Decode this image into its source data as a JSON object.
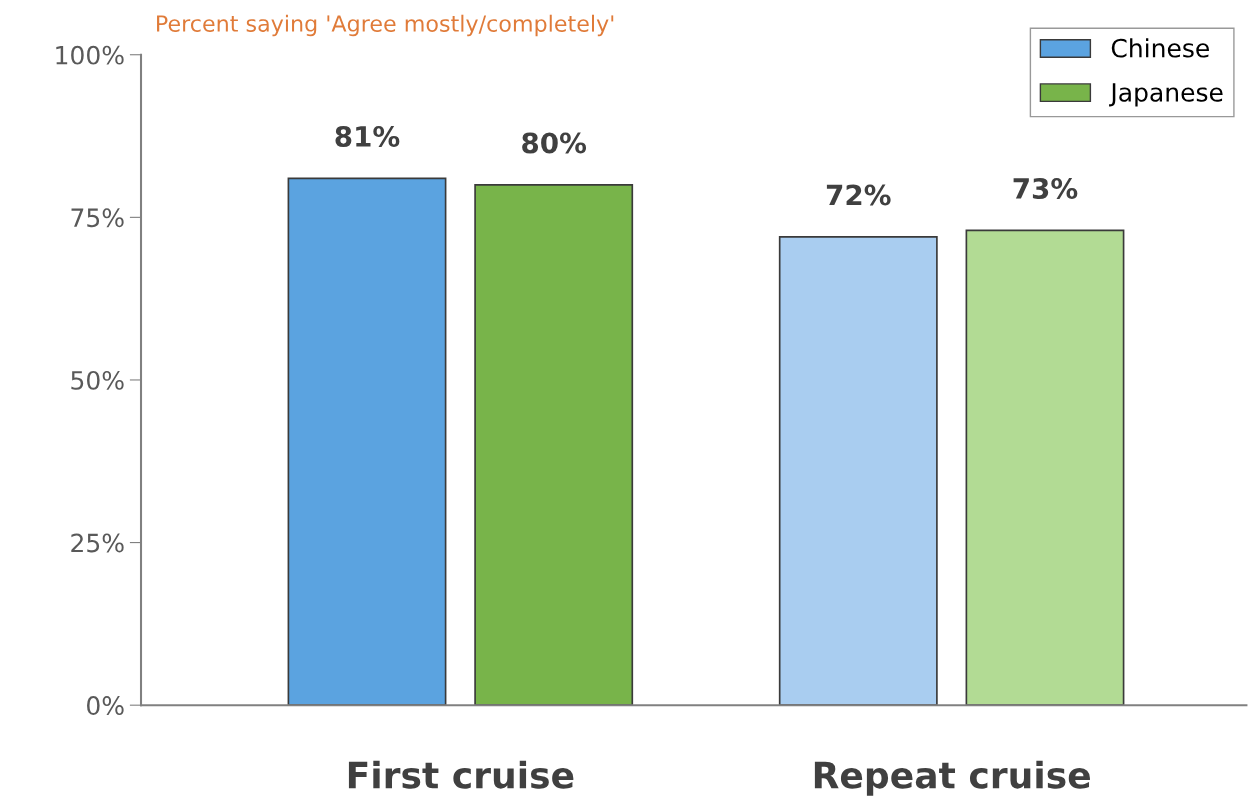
{
  "chart_data": {
    "type": "bar",
    "title": "Percent saying 'Agree mostly/completely'",
    "categories": [
      "First cruise",
      "Repeat cruise"
    ],
    "series": [
      {
        "name": "Chinese",
        "colors": [
          "#5ba3e0",
          "#a9cdf0"
        ],
        "values": [
          81,
          72
        ],
        "value_labels": [
          "81%",
          "72%"
        ]
      },
      {
        "name": "Japanese",
        "colors": [
          "#78b44a",
          "#b2db94"
        ],
        "values": [
          80,
          73
        ],
        "value_labels": [
          "80%",
          "73%"
        ]
      }
    ],
    "ylim": [
      0,
      100
    ],
    "yticks": [
      {
        "value": 0,
        "label": "0%"
      },
      {
        "value": 25,
        "label": "25%"
      },
      {
        "value": 50,
        "label": "50%"
      },
      {
        "value": 75,
        "label": "75%"
      },
      {
        "value": 100,
        "label": "100%"
      }
    ],
    "grid": false,
    "legend": "top right"
  }
}
